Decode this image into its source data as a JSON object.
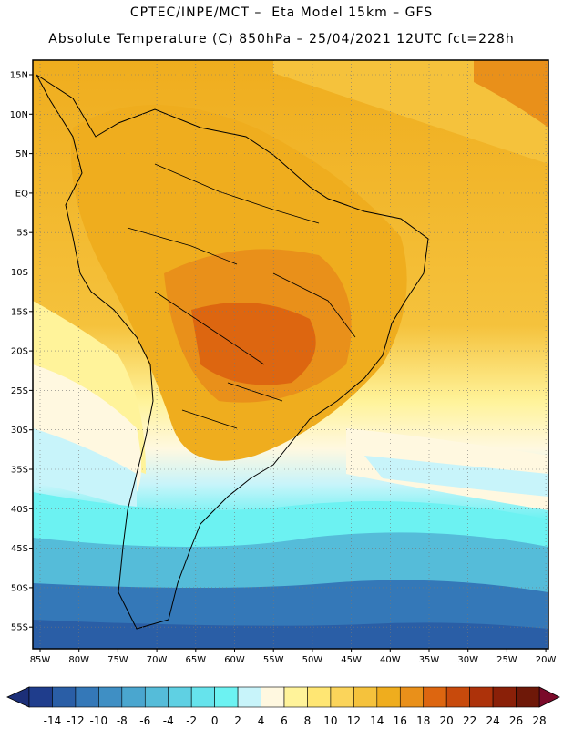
{
  "header": {
    "line1": "CPTEC/INPE/MCT –  Eta Model 15km – GFS",
    "line2": "Absolute Temperature (C) 850hPa – 25/04/2021 12UTC fct=228h"
  },
  "map": {
    "lat_labels": [
      "15N",
      "10N",
      "5N",
      "EQ",
      "5S",
      "10S",
      "15S",
      "20S",
      "25S",
      "30S",
      "35S",
      "40S",
      "45S",
      "50S",
      "55S"
    ],
    "lon_labels": [
      "85W",
      "80W",
      "75W",
      "70W",
      "65W",
      "60W",
      "55W",
      "50W",
      "45W",
      "40W",
      "35W",
      "30W",
      "25W",
      "20W"
    ]
  },
  "colorbar": {
    "labels": [
      "-14",
      "-12",
      "-10",
      "-8",
      "-6",
      "-4",
      "-2",
      "0",
      "2",
      "4",
      "6",
      "8",
      "10",
      "12",
      "14",
      "16",
      "18",
      "20",
      "22",
      "24",
      "26",
      "28"
    ],
    "colors": [
      "#1f3d8c",
      "#2a5ea6",
      "#3478b8",
      "#3f8fc4",
      "#4aa6cf",
      "#55bcd9",
      "#5fd0e3",
      "#66e3ec",
      "#6cf2f2",
      "#c8f4fa",
      "#fff8e0",
      "#fff39a",
      "#ffe673",
      "#fbd45a",
      "#f5c23c",
      "#efad1e",
      "#e9901a",
      "#dd6610",
      "#c84a0c",
      "#ad320a",
      "#8a2008",
      "#6e1808"
    ],
    "low_arrow_color": "#1c2f78",
    "high_arrow_color": "#7a0a2a"
  }
}
